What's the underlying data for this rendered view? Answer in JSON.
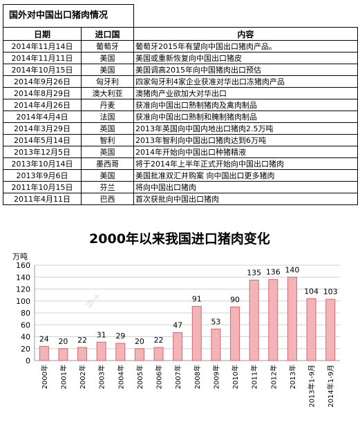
{
  "table": {
    "title": "国外对中国出口猪肉情况",
    "headers": [
      "日期",
      "进口国",
      "内容"
    ],
    "rows": [
      {
        "date": "2014年11月14日",
        "country": "葡萄牙",
        "content": "葡萄牙2015年有望向中国出口猪肉产品。"
      },
      {
        "date": "2014年11月11日",
        "country": "美国",
        "content": "美国或重新恢复向中国出口猪皮"
      },
      {
        "date": "2014年10月15日",
        "country": "美国",
        "content": "美国调高2015年向中国猪肉出口预估"
      },
      {
        "date": "2014年9月26日",
        "country": "匈牙利",
        "content": "四家匈牙利4家企业获准对华出口冻猪肉产品"
      },
      {
        "date": "2014年8月29日",
        "country": "澳大利亚",
        "content": "澳猪肉产业欲加大对华出口"
      },
      {
        "date": "2014年4月26日",
        "country": "丹麦",
        "content": "获准向中国出口熟制猪肉及禽肉制品"
      },
      {
        "date": "2014年4月4日",
        "country": "法国",
        "content": "获准向中国出口熟制和腌制猪肉制品"
      },
      {
        "date": "2014年3月29日",
        "country": "英国",
        "content": "2013年英国向中国内地出口猪肉2.5万吨"
      },
      {
        "date": "2014年5月14日",
        "country": "智利",
        "content": "2013年智利向中国出口猪肉达到6万吨"
      },
      {
        "date": "2013年12月5日",
        "country": "英国",
        "content": "2014年开始向中国出口种猪精液"
      },
      {
        "date": "2013年10月14日",
        "country": "墨西哥",
        "content": "将于2014年上半年正式开始向中国出口猪肉"
      },
      {
        "date": "2013年9月6日",
        "country": "美国",
        "content": "美国批准双汇并购案 向中国出口更多猪肉"
      },
      {
        "date": "2011年10月15日",
        "country": "芬兰",
        "content": "将向中国出口猪肉"
      },
      {
        "date": "2011年4月11日",
        "country": "巴西",
        "content": "首次获批向中国出口猪肉"
      }
    ]
  },
  "chart_data": {
    "type": "bar",
    "title": "2000年以来我国进口猪肉变化",
    "ylabel": "万吨",
    "categories": [
      "2000年",
      "2001年",
      "2002年",
      "2003年",
      "2004年",
      "2005年",
      "2006年",
      "2007年",
      "2008年",
      "2009年",
      "2010年",
      "2011年",
      "2012年",
      "2013年",
      "2013年1-9月",
      "2014年1-9月"
    ],
    "values": [
      24,
      20,
      22,
      31,
      29,
      20,
      22,
      47,
      91,
      53,
      90,
      135,
      136,
      140,
      104,
      103
    ],
    "ylim": [
      0,
      160
    ],
    "yticks": [
      0,
      20,
      40,
      60,
      80,
      100,
      120,
      140,
      160
    ],
    "grid": true,
    "bar_fill": "#f4b4b7",
    "bar_stroke": "#d2686e"
  }
}
